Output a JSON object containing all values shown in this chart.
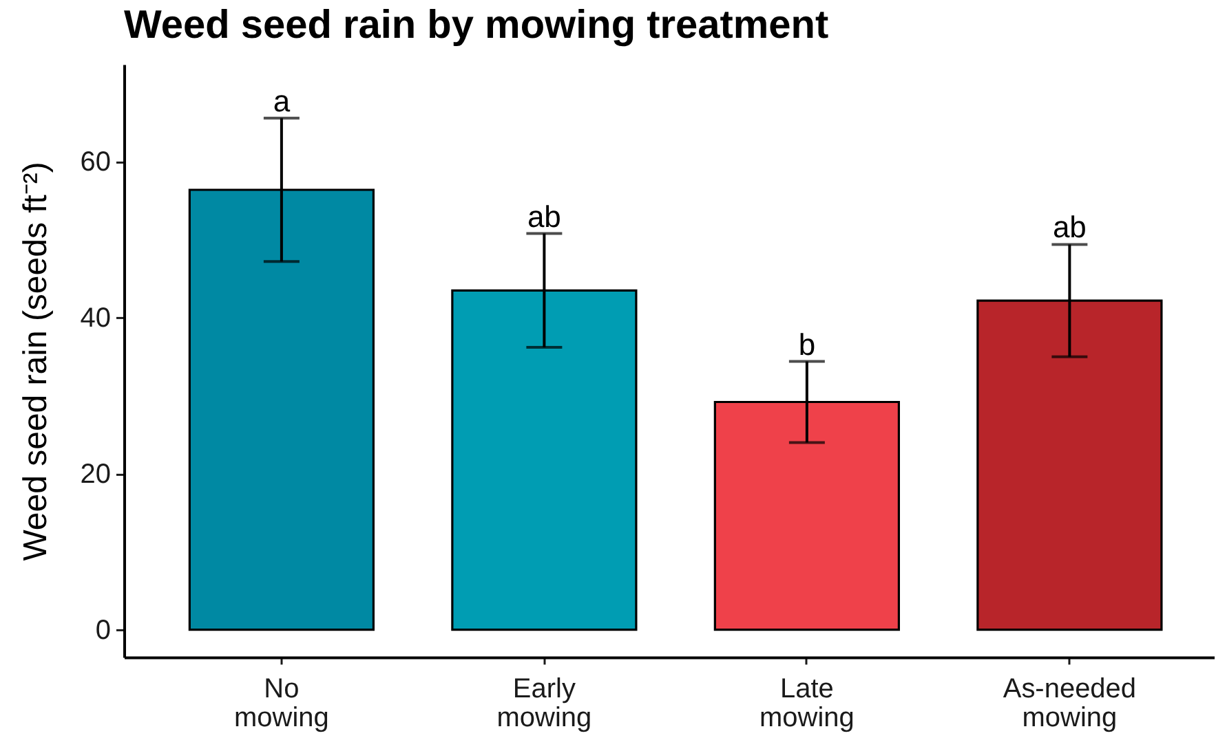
{
  "chart_data": {
    "type": "bar",
    "title": "Weed seed rain by mowing treatment",
    "ylabel": "Weed seed rain (seeds ft⁻²)",
    "categories": [
      "No mowing",
      "Early mowing",
      "Late mowing",
      "As-needed mowing"
    ],
    "values": [
      56.4,
      43.5,
      29.2,
      42.2
    ],
    "errors": [
      9.2,
      7.3,
      5.2,
      7.2
    ],
    "colors": [
      "#0089a3",
      "#009db3",
      "#ef414a",
      "#b8252a"
    ],
    "ylim": [
      -3.5,
      72.5
    ],
    "yticks": [
      0,
      20,
      40,
      60
    ],
    "annotations": [
      {
        "text": "a",
        "x": "No mowing",
        "y": 65.6
      },
      {
        "text": "ab",
        "x": "Early mowing",
        "y": 50.8
      },
      {
        "text": "b",
        "x": "Late mowing",
        "y": 34.4
      },
      {
        "text": "ab",
        "x": "As-needed mowing",
        "y": 49.4
      }
    ]
  }
}
